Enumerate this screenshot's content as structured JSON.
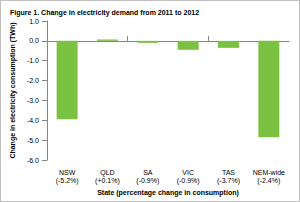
{
  "chart_data": {
    "type": "bar",
    "title": "Figure 1. Change in electricity demand from 2011 to 2012",
    "x_label": "State (percentage change in consumption)",
    "y_label": "Change in electricity consumption (TWh)",
    "categories": [
      "NSW\n(-5.2%)",
      "QLD\n(+0.1%)",
      "SA\n(-0.9%)",
      "VIC\n(-0.9%)",
      "TAS\n(-3.7%)",
      "NEM-wide\n(-2.4%)"
    ],
    "values": [
      -3.95,
      0.07,
      -0.1,
      -0.45,
      -0.35,
      -4.85
    ],
    "color": "#7cc242",
    "ylim": [
      -6,
      1
    ],
    "yticks": [
      {
        "value": -6,
        "label": "-6.0"
      },
      {
        "value": -5,
        "label": "-5.0"
      },
      {
        "value": -4,
        "label": "-4.0"
      },
      {
        "value": -3,
        "label": "-3.0"
      },
      {
        "value": -2,
        "label": "-2.0"
      },
      {
        "value": -1,
        "label": "-1.0"
      },
      {
        "value": 0,
        "label": "0.0"
      },
      {
        "value": 1,
        "label": "1.0"
      }
    ],
    "grid": false
  }
}
